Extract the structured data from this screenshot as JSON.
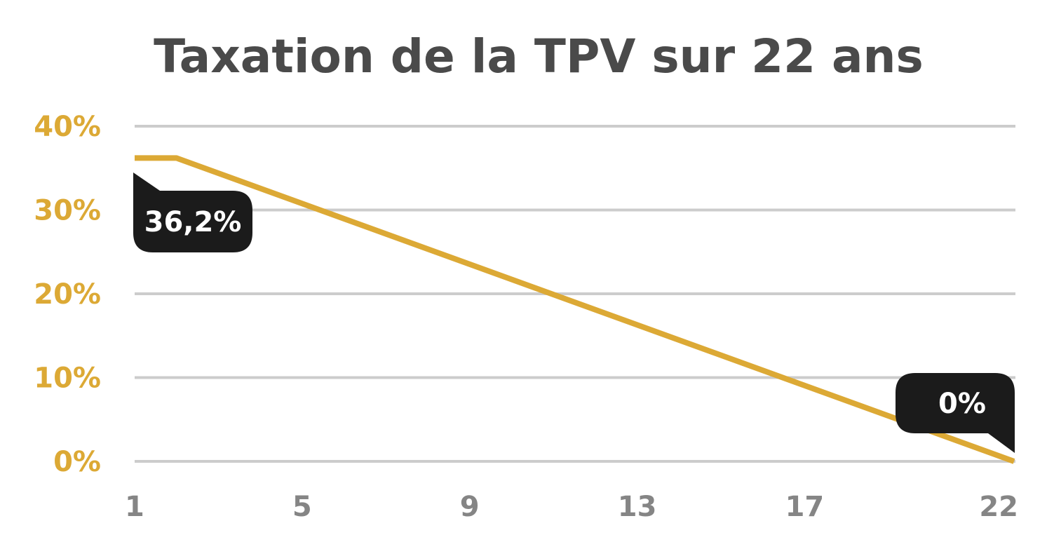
{
  "chart_data": {
    "type": "line",
    "title": "Taxation de la TPV sur 22 ans",
    "xlabel": "",
    "ylabel": "",
    "x_ticks": [
      "1",
      "5",
      "9",
      "13",
      "17",
      "22"
    ],
    "xlim": [
      1,
      22
    ],
    "y_ticks": [
      "0%",
      "10%",
      "20%",
      "30%",
      "40%"
    ],
    "ylim": [
      0,
      40
    ],
    "grid": true,
    "series": [
      {
        "x": [
          1,
          2,
          22
        ],
        "y": [
          36.2,
          36.2,
          0
        ]
      }
    ],
    "annotations": [
      {
        "text": "36,2%",
        "x": 1,
        "y": 36.2
      },
      {
        "text": "0%",
        "x": 22,
        "y": 0
      }
    ],
    "colors": {
      "title": "#4a4a4a",
      "line": "#dca935",
      "y_tick": "#dca935",
      "x_tick": "#858585",
      "grid": "#cccccc",
      "bubble": "#1b1b1b",
      "bubble_text": "#ffffff"
    }
  }
}
